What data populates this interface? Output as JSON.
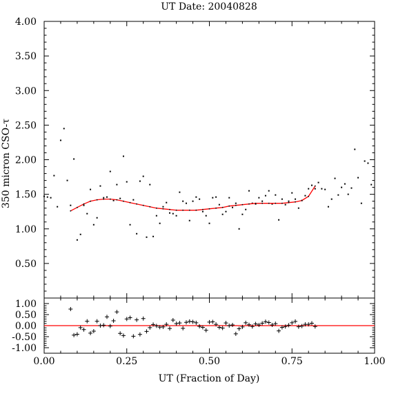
{
  "chart_data": [
    {
      "type": "scatter",
      "title": "UT Date: 20040828",
      "ylabel": "350 micron CSO-τ",
      "xlim": [
        0,
        1
      ],
      "ylim": [
        0,
        4
      ],
      "x_ticks": [
        "0.00",
        "0.25",
        "0.50",
        "0.75",
        "1.00"
      ],
      "y_ticks": [
        "0.50",
        "1.00",
        "1.50",
        "2.00",
        "2.50",
        "3.00",
        "3.50",
        "4.00"
      ],
      "grid": false,
      "colors": {
        "points": "#000000",
        "fit": "#ff0000"
      },
      "series": [
        {
          "kind": "points",
          "x": [
            0.0,
            0.01,
            0.02,
            0.03,
            0.04,
            0.05,
            0.06,
            0.07,
            0.08,
            0.09,
            0.1,
            0.11,
            0.12,
            0.13,
            0.14,
            0.15,
            0.16,
            0.17,
            0.18,
            0.19,
            0.2,
            0.21,
            0.22,
            0.23,
            0.24,
            0.25,
            0.26,
            0.27,
            0.28,
            0.29,
            0.3,
            0.31,
            0.32,
            0.33,
            0.34,
            0.35,
            0.36,
            0.37,
            0.38,
            0.39,
            0.4,
            0.41,
            0.42,
            0.43,
            0.44,
            0.45,
            0.46,
            0.47,
            0.48,
            0.49,
            0.5,
            0.51,
            0.52,
            0.53,
            0.54,
            0.55,
            0.56,
            0.57,
            0.58,
            0.59,
            0.6,
            0.61,
            0.62,
            0.63,
            0.64,
            0.65,
            0.66,
            0.67,
            0.68,
            0.69,
            0.7,
            0.71,
            0.72,
            0.73,
            0.74,
            0.75,
            0.76,
            0.77,
            0.78,
            0.79,
            0.8,
            0.81,
            0.82,
            0.83,
            0.84,
            0.85,
            0.86,
            0.87,
            0.88,
            0.89,
            0.9,
            0.91,
            0.92,
            0.93,
            0.94,
            0.95,
            0.96,
            0.97,
            0.98,
            0.99
          ],
          "y": [
            1.47,
            1.46,
            1.45,
            1.77,
            1.32,
            2.28,
            2.45,
            1.7,
            1.34,
            2.01,
            0.84,
            0.92,
            1.34,
            1.22,
            1.57,
            1.06,
            1.16,
            1.62,
            1.45,
            1.46,
            1.83,
            1.41,
            1.64,
            1.44,
            2.05,
            1.68,
            1.06,
            1.42,
            0.93,
            1.69,
            1.76,
            0.88,
            1.64,
            0.89,
            1.19,
            1.08,
            1.32,
            1.38,
            1.23,
            1.22,
            1.19,
            1.53,
            1.4,
            1.37,
            1.12,
            1.4,
            1.46,
            1.43,
            1.25,
            1.19,
            1.08,
            1.45,
            1.46,
            1.35,
            1.21,
            1.25,
            1.45,
            1.31,
            1.37,
            1.0,
            1.21,
            1.28,
            1.55,
            1.37,
            1.36,
            1.45,
            1.4,
            1.48,
            1.55,
            1.36,
            1.49,
            1.13,
            1.43,
            1.35,
            1.4,
            1.52,
            1.43,
            1.3,
            1.41,
            1.48,
            1.58,
            1.63,
            1.58,
            1.67,
            1.58,
            1.57,
            1.32,
            1.43,
            1.73,
            1.49,
            1.6,
            1.65,
            1.5,
            1.59,
            2.15,
            1.74,
            1.37,
            1.98,
            1.95,
            1.64
          ]
        },
        {
          "kind": "fit",
          "x": [
            0.08,
            0.1,
            0.12,
            0.14,
            0.16,
            0.18,
            0.2,
            0.22,
            0.24,
            0.26,
            0.28,
            0.3,
            0.32,
            0.34,
            0.36,
            0.38,
            0.4,
            0.42,
            0.44,
            0.46,
            0.48,
            0.5,
            0.52,
            0.54,
            0.56,
            0.58,
            0.6,
            0.62,
            0.64,
            0.66,
            0.68,
            0.7,
            0.72,
            0.74,
            0.76,
            0.78,
            0.8,
            0.82
          ],
          "y": [
            1.26,
            1.31,
            1.36,
            1.4,
            1.42,
            1.43,
            1.43,
            1.42,
            1.4,
            1.38,
            1.36,
            1.34,
            1.32,
            1.3,
            1.29,
            1.28,
            1.27,
            1.27,
            1.27,
            1.27,
            1.28,
            1.29,
            1.3,
            1.31,
            1.33,
            1.34,
            1.35,
            1.36,
            1.37,
            1.37,
            1.37,
            1.37,
            1.37,
            1.38,
            1.39,
            1.41,
            1.47,
            1.62
          ]
        }
      ]
    },
    {
      "type": "scatter",
      "xlabel": "UT (Fraction of Day)",
      "xlim": [
        0,
        1
      ],
      "ylim": [
        -1.25,
        1.25
      ],
      "x_ticks": [
        "0.00",
        "0.25",
        "0.50",
        "0.75",
        "1.00"
      ],
      "y_ticks": [
        "1.00",
        "0.50",
        "0.00",
        "-0.50",
        "-1.00"
      ],
      "grid": false,
      "colors": {
        "points": "#000000",
        "zero_line": "#ff0000"
      },
      "zero_line": 0,
      "series": [
        {
          "kind": "residuals",
          "x": [
            0.08,
            0.09,
            0.1,
            0.11,
            0.12,
            0.13,
            0.14,
            0.15,
            0.16,
            0.17,
            0.18,
            0.19,
            0.2,
            0.21,
            0.22,
            0.23,
            0.24,
            0.25,
            0.26,
            0.27,
            0.28,
            0.29,
            0.3,
            0.31,
            0.32,
            0.33,
            0.34,
            0.35,
            0.36,
            0.37,
            0.38,
            0.39,
            0.4,
            0.41,
            0.42,
            0.43,
            0.44,
            0.45,
            0.46,
            0.47,
            0.48,
            0.49,
            0.5,
            0.51,
            0.52,
            0.53,
            0.54,
            0.55,
            0.56,
            0.57,
            0.58,
            0.59,
            0.6,
            0.61,
            0.62,
            0.63,
            0.64,
            0.65,
            0.66,
            0.67,
            0.68,
            0.69,
            0.7,
            0.71,
            0.72,
            0.73,
            0.74,
            0.75,
            0.76,
            0.77,
            0.78,
            0.79,
            0.8,
            0.81,
            0.82
          ],
          "y": [
            0.75,
            -0.43,
            -0.39,
            -0.09,
            -0.18,
            0.2,
            -0.34,
            -0.25,
            0.2,
            0.0,
            0.02,
            0.4,
            -0.02,
            0.22,
            0.62,
            -0.35,
            -0.45,
            0.3,
            0.36,
            -0.48,
            0.26,
            -0.4,
            0.32,
            -0.26,
            -0.09,
            0.05,
            -0.01,
            -0.07,
            -0.06,
            0.06,
            -0.13,
            0.25,
            0.09,
            0.12,
            -0.12,
            0.15,
            0.19,
            0.17,
            0.13,
            -0.03,
            -0.08,
            -0.21,
            0.16,
            0.17,
            0.06,
            -0.08,
            -0.11,
            0.12,
            0.0,
            0.03,
            -0.37,
            -0.14,
            -0.06,
            0.13,
            0.04,
            -0.04,
            0.08,
            0.03,
            0.11,
            0.18,
            0.14,
            0.03,
            0.09,
            -0.24,
            -0.08,
            -0.04,
            0.02,
            0.13,
            0.19,
            -0.05,
            -0.02,
            0.06,
            0.06,
            0.11,
            -0.04
          ]
        }
      ]
    }
  ]
}
